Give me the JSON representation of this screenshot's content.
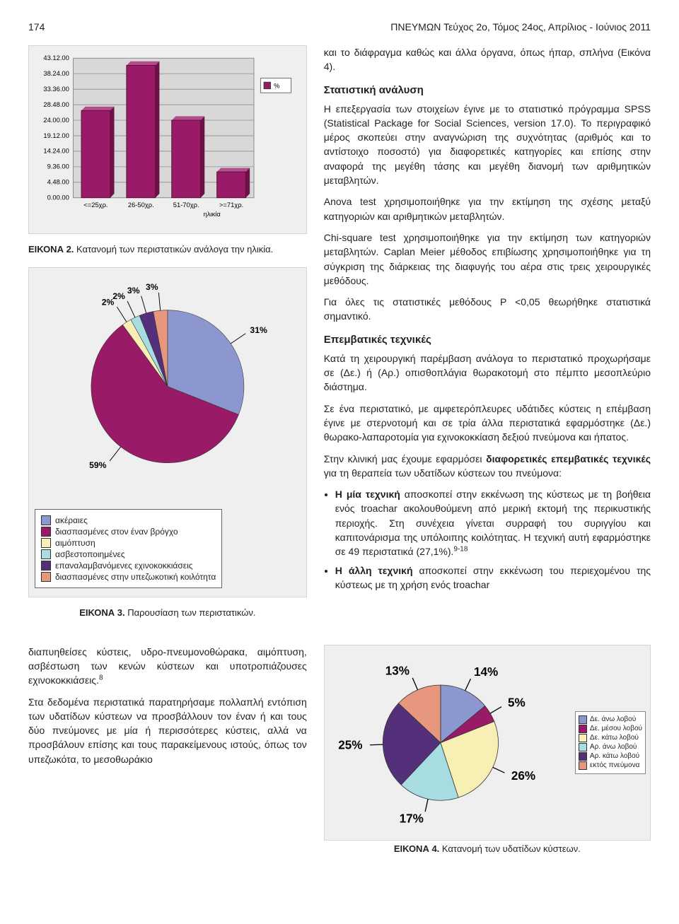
{
  "header": {
    "page_number": "174",
    "journal": "ΠΝΕΥΜΩΝ Τεύχος 2ο, Τόμος 24ος, Απρίλιος - Ιούνιος 2011"
  },
  "fig2": {
    "caption_label": "ΕΙΚΟΝΑ 2.",
    "caption_text": " Κατανομή των περιστατικών ανάλογα την ηλικία.",
    "type": "bar",
    "y_ticks": [
      "0.00.00",
      "4.48.00",
      "9.36.00",
      "14.24.00",
      "19.12.00",
      "24.00.00",
      "28.48.00",
      "33.36.00",
      "38.24.00",
      "43.12.00"
    ],
    "x_labels": [
      "<=25χρ.",
      "26-50χρ.",
      "51-70χρ.",
      ">=71χρ."
    ],
    "x_axis_title": "ηλικία",
    "values": [
      27,
      41,
      24,
      8
    ],
    "ymax": 43.2,
    "bar_color": "#991a66",
    "grid_color": "#c0c0c0",
    "bg": "#efefef",
    "legend": "%",
    "legend_swatch": "#991a66"
  },
  "fig3": {
    "caption_label": "ΕΙΚΟΝΑ 3.",
    "caption_text": " Παρουσίαση των περιστατικών.",
    "type": "pie",
    "slices": [
      {
        "label": "ακέραιες",
        "value": 31,
        "color": "#8c97d0",
        "text": "31%"
      },
      {
        "label": "διασπασμένες στον έναν βρόγχο",
        "value": 59,
        "color": "#991a66",
        "text": "59%"
      },
      {
        "label": "αιμόπτυση",
        "value": 2,
        "color": "#f7efb3",
        "text": "2%"
      },
      {
        "label": "ασβεστοποιημένες",
        "value": 2,
        "color": "#a7dde1",
        "text": "2%"
      },
      {
        "label": "επαναλαμβανόμενες εχινοκοκκιάσεις",
        "value": 3,
        "color": "#54307a",
        "text": "3%"
      },
      {
        "label": "διασπασμένες στην υπεζωκοτική κοιλότητα",
        "value": 3,
        "color": "#e6977e",
        "text": "3%"
      }
    ]
  },
  "fig4": {
    "caption_label": "ΕΙΚΟΝΑ 4.",
    "caption_text": " Κατανομή των υδατίδων κύστεων.",
    "type": "pie",
    "slices": [
      {
        "label": "Δε. άνω λοβού",
        "value": 14,
        "color": "#8c97d0",
        "text": "14%"
      },
      {
        "label": "Δε. μέσου λοβού",
        "value": 5,
        "color": "#991a66",
        "text": "5%"
      },
      {
        "label": "Δε. κάτω λοβού",
        "value": 26,
        "color": "#f7efb3",
        "text": "26%"
      },
      {
        "label": "Αρ. άνω λοβού",
        "value": 17,
        "color": "#a7dde1",
        "text": "17%"
      },
      {
        "label": "Αρ. κάτω λοβού",
        "value": 25,
        "color": "#54307a",
        "text": "25%"
      },
      {
        "label": "εκτός πνεύμονα",
        "value": 13,
        "color": "#e6977e",
        "text": "13%"
      }
    ]
  },
  "text": {
    "intro": "και το διάφραγμα καθώς και άλλα όργανα, όπως ήπαρ, σπλήνα (Εικόνα 4).",
    "stat_head": "Στατιστική ανάλυση",
    "stat_p1": "Η επεξεργασία των στοιχείων έγινε με το στατιστικό πρόγραμμα SPSS (Statistical Package for Social Sciences, version 17.0). Το περιγραφικό μέρος σκοπεύει στην αναγνώριση της συχνότητας (αριθμός και το αντίστοιχο ποσοστό) για διαφορετικές κατηγορίες και επίσης στην αναφορά της μεγέθη τάσης και μεγέθη διανομή των αριθμητικών μεταβλητών.",
    "stat_p2": "Anova test χρησιμοποιήθηκε για την εκτίμηση της σχέσης μεταξύ κατηγοριών και αριθμητικών μεταβλητών.",
    "stat_p3": "Chi-square test χρησιμοποιήθηκε για την εκτίμηση των κατηγοριών μεταβλητών. Caplan Meier μέθοδος επιβίωσης χρησιμοποιήθηκε για τη σύγκριση της διάρκειας της διαφυγής του αέρα στις τρεις χειρουργικές μεθόδους.",
    "stat_p4": "Για όλες τις στατιστικές μεθόδους Ρ <0,05 θεωρήθηκε στατιστικά σημαντικό.",
    "int_head": "Επεμβατικές τεχνικές",
    "int_p1": "Κατά τη χειρουργική παρέμβαση ανάλογα το περιστατικό προχωρήσαμε σε (Δε.) ή (Αρ.) οπισθοπλάγια θωρακοτομή στο πέμπτο μεσοπλεύριο διάστημα.",
    "int_p2": "Σε ένα περιστατικό, με αμφετερόπλευρες υδάτιδες κύστεις η επέμβαση έγινε με στερνοτομή και σε τρία άλλα περιστατικά εφαρμόστηκε (Δε.) θωρακο-λαπαροτομία για εχινοκοκκίαση δεξιού πνεύμονα και ήπατος.",
    "int_p3a": "Στην κλινική μας έχουμε εφαρμόσει ",
    "int_p3b": "διαφορετικές επεμβατικές τεχνικές",
    "int_p3c": " για τη θεραπεία των υδατίδων κύστεων του πνεύμονα:",
    "bullet1a": "Η μία τεχνική",
    "bullet1b": " αποσκοπεί στην εκκένωση της κύστεως με τη βοήθεια ενός troachar ακολουθούμενη από μερική εκτομή της περικυστικής περιοχής. Στη συνέχεια γίνεται συρραφή του συριγγίου και καπιτονάρισμα της υπόλοιπης κοιλότητας. Η τεχνική αυτή εφαρμόστηκε σε 49 περιστατικά (27,1%).",
    "bullet1_sup": "9-18",
    "bullet2a": "Η άλλη τεχνική",
    "bullet2b": " αποσκοπεί στην εκκένωση του περιεχομένου της κύστεως με τη χρήση ενός troachar",
    "bottom_p1": "διαπυηθείσες κύστεις, υδρο-πνευμονοθώρακα, αιμόπτυση, ασβέστωση των κενών κύστεων και υποτροπιάζουσες εχινοκοκκιάσεις.",
    "bottom_sup": "8",
    "bottom_p2": "Στα δεδομένα περιστατικά παρατηρήσαμε πολλαπλή εντόπιση των υδατίδων κύστεων να προσβάλλουν τον έναν ή και τους δύο πνεύμονες με μία ή περισσότερες κύστεις, αλλά να προσβάλουν επίσης και τους παρακείμενους ιστούς, όπως τον υπεζωκότα, το μεσοθωράκιο"
  }
}
